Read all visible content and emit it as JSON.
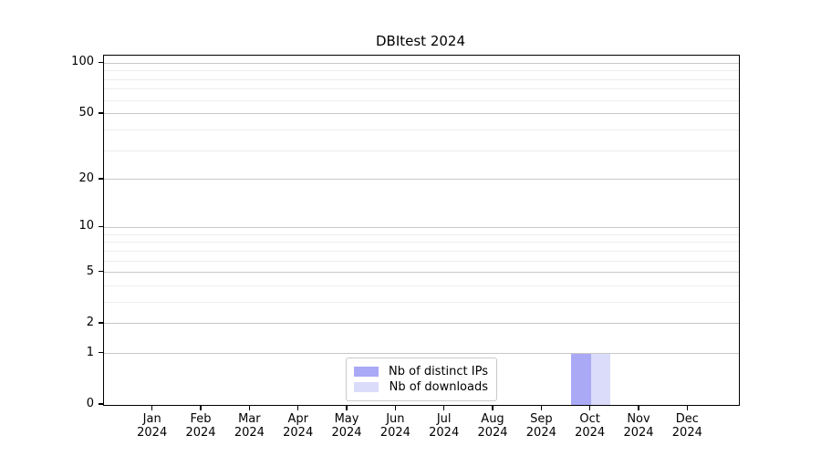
{
  "title": "DBItest 2024",
  "colors": {
    "background": "#ffffff",
    "spine": "#000000",
    "major_grid": "#c8c8c8",
    "minor_grid": "#ededed",
    "legend_border": "#c9c9c9",
    "distinct_ips_bar": "#a9a9f5",
    "downloads_bar": "#dbdbfa"
  },
  "legend": {
    "items": [
      {
        "label": "Nb of distinct IPs",
        "color": "#a9a9f5"
      },
      {
        "label": "Nb of downloads",
        "color": "#dbdbfa"
      }
    ]
  },
  "chart_data": {
    "type": "bar",
    "title": "DBItest 2024",
    "categories": [
      "Jan 2024",
      "Feb 2024",
      "Mar 2024",
      "Apr 2024",
      "May 2024",
      "Jun 2024",
      "Jul 2024",
      "Aug 2024",
      "Sep 2024",
      "Oct 2024",
      "Nov 2024",
      "Dec 2024"
    ],
    "series": [
      {
        "name": "Nb of distinct IPs",
        "color": "#a9a9f5",
        "values": [
          0,
          0,
          0,
          0,
          0,
          0,
          0,
          0,
          0,
          1,
          0,
          0
        ]
      },
      {
        "name": "Nb of downloads",
        "color": "#dbdbfa",
        "values": [
          0,
          0,
          0,
          0,
          0,
          0,
          0,
          0,
          0,
          1,
          0,
          0
        ]
      }
    ],
    "xlabel": "",
    "ylabel": "",
    "y_scale": "log1p",
    "ylim": [
      0,
      111
    ],
    "y_major_ticks": [
      0,
      1,
      2,
      5,
      10,
      20,
      50,
      100
    ],
    "y_minor_gridlines": [
      3,
      4,
      6,
      7,
      8,
      9,
      30,
      40,
      60,
      70,
      80,
      90
    ],
    "grid": "horizontal major+minor",
    "legend_position": "lower center inside",
    "bar_width_fraction": 0.4
  }
}
